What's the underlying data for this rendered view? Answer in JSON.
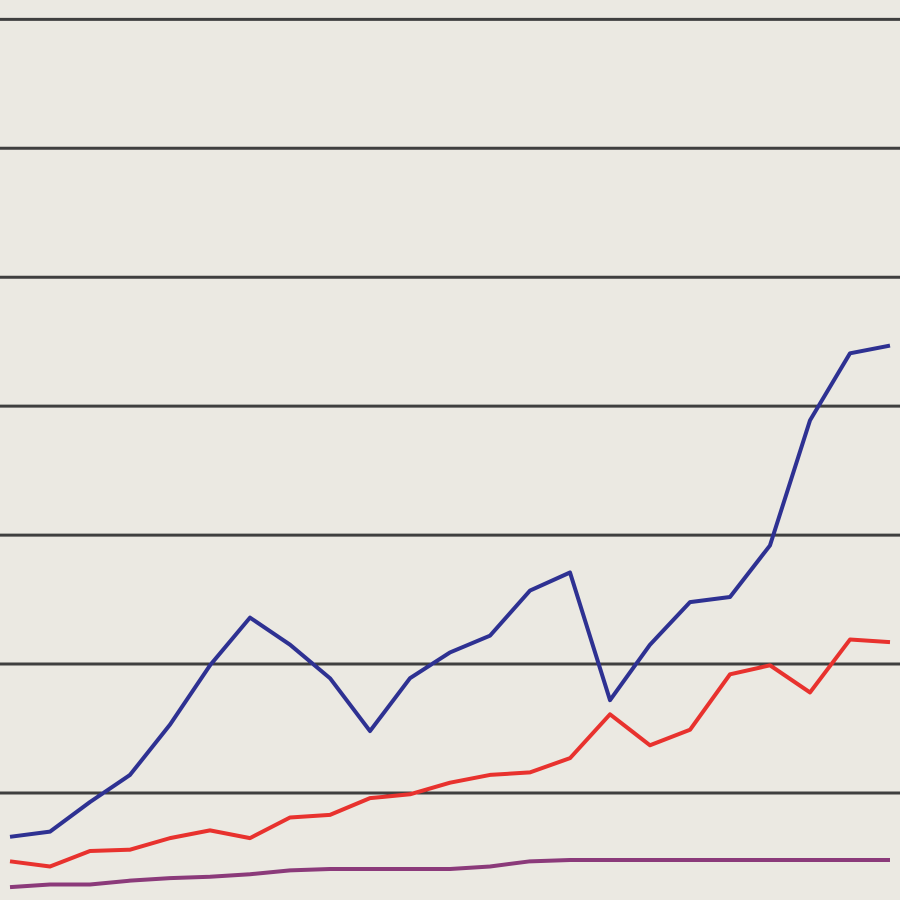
{
  "chart_data": {
    "type": "line",
    "x": [
      0,
      1,
      2,
      3,
      4,
      5,
      6,
      7,
      8,
      9,
      10,
      11,
      12,
      13,
      14,
      15,
      16,
      17,
      18,
      19,
      20,
      21,
      22
    ],
    "xlim": [
      -0.25,
      22.25
    ],
    "ylim": [
      0.17,
      7.15
    ],
    "yticks": [
      1,
      2,
      3,
      4,
      5,
      6,
      7
    ],
    "grid": true,
    "series": [
      {
        "color": "#2e3192",
        "values": [
          0.66,
          0.7,
          0.93,
          1.14,
          1.53,
          1.99,
          2.36,
          2.15,
          1.89,
          1.48,
          1.89,
          2.09,
          2.22,
          2.57,
          2.71,
          1.72,
          2.15,
          2.48,
          2.52,
          2.92,
          3.89,
          4.41,
          4.47
        ]
      },
      {
        "color": "#e8322e",
        "values": [
          0.47,
          0.43,
          0.55,
          0.56,
          0.65,
          0.71,
          0.65,
          0.81,
          0.83,
          0.96,
          0.99,
          1.08,
          1.14,
          1.16,
          1.27,
          1.61,
          1.37,
          1.49,
          1.92,
          1.99,
          1.78,
          2.19,
          2.17
        ]
      },
      {
        "color": "#8b3a7a",
        "values": [
          0.27,
          0.29,
          0.29,
          0.32,
          0.34,
          0.35,
          0.37,
          0.4,
          0.41,
          0.41,
          0.41,
          0.41,
          0.43,
          0.47,
          0.48,
          0.48,
          0.48,
          0.48,
          0.48,
          0.48,
          0.48,
          0.48,
          0.48
        ]
      }
    ]
  }
}
